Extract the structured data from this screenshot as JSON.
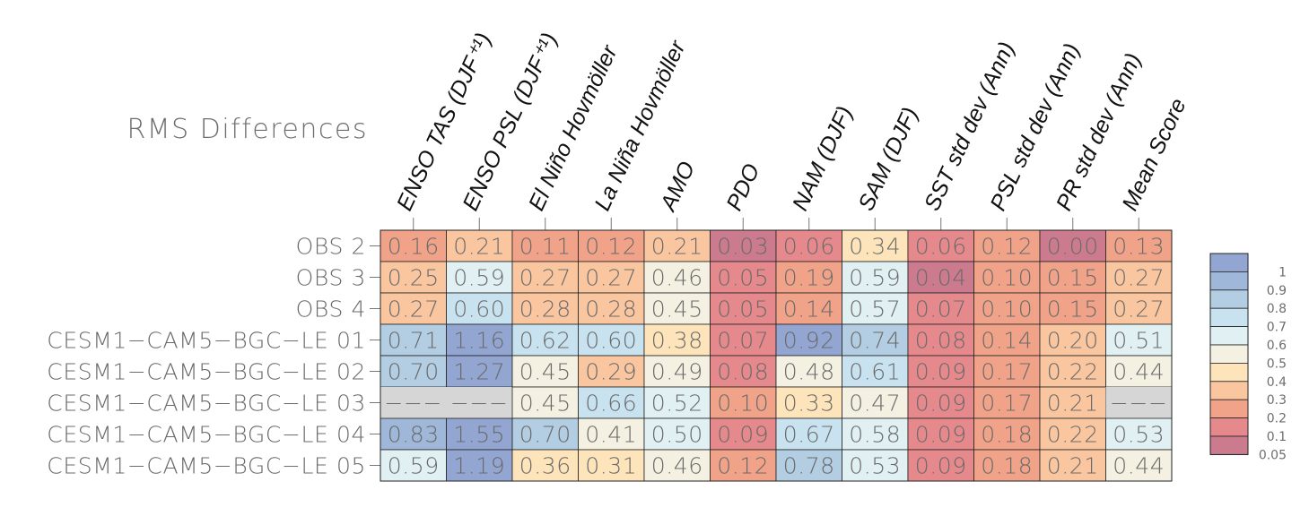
{
  "chart_data": {
    "type": "heatmap",
    "title": "RMS Differences",
    "columns": [
      "ENSO TAS (DJF⁺¹)",
      "ENSO PSL (DJF⁺¹)",
      "El Niño Hovmöller",
      "La Niña Hovmöller",
      "AMO",
      "PDO",
      "NAM (DJF)",
      "SAM (DJF)",
      "SST std dev (Ann)",
      "PSL std dev (Ann)",
      "PR std dev (Ann)",
      "Mean Score"
    ],
    "rows": [
      {
        "name": "OBS 2",
        "values": [
          0.16,
          0.21,
          0.11,
          0.12,
          0.21,
          0.03,
          0.06,
          0.34,
          0.06,
          0.12,
          0.0,
          0.13
        ]
      },
      {
        "name": "OBS 3",
        "values": [
          0.25,
          0.59,
          0.27,
          0.27,
          0.46,
          0.05,
          0.19,
          0.59,
          0.04,
          0.1,
          0.15,
          0.27
        ]
      },
      {
        "name": "OBS 4",
        "values": [
          0.27,
          0.6,
          0.28,
          0.28,
          0.45,
          0.05,
          0.14,
          0.57,
          0.07,
          0.1,
          0.15,
          0.27
        ]
      },
      {
        "name": "CESM1−CAM5−BGC−LE 01",
        "values": [
          0.71,
          1.16,
          0.62,
          0.6,
          0.38,
          0.07,
          0.92,
          0.74,
          0.08,
          0.14,
          0.2,
          0.51
        ]
      },
      {
        "name": "CESM1−CAM5−BGC−LE 02",
        "values": [
          0.7,
          1.27,
          0.45,
          0.29,
          0.49,
          0.08,
          0.48,
          0.61,
          0.09,
          0.17,
          0.22,
          0.44
        ]
      },
      {
        "name": "CESM1−CAM5−BGC−LE 03",
        "values": [
          null,
          null,
          0.45,
          0.66,
          0.52,
          0.1,
          0.33,
          0.47,
          0.09,
          0.17,
          0.21,
          null
        ]
      },
      {
        "name": "CESM1−CAM5−BGC−LE 04",
        "values": [
          0.83,
          1.55,
          0.7,
          0.41,
          0.5,
          0.09,
          0.67,
          0.58,
          0.09,
          0.18,
          0.22,
          0.53
        ]
      },
      {
        "name": "CESM1−CAM5−BGC−LE 05",
        "values": [
          0.59,
          1.19,
          0.36,
          0.31,
          0.46,
          0.12,
          0.78,
          0.53,
          0.09,
          0.18,
          0.21,
          0.44
        ]
      }
    ],
    "missing_text": "−−−",
    "colorbar": {
      "labels": [
        "1",
        "0.9",
        "0.8",
        "0.7",
        "0.6",
        "0.5",
        "0.4",
        "0.3",
        "0.2",
        "0.1",
        "0.05"
      ],
      "bounds": [
        0.05,
        0.1,
        0.2,
        0.3,
        0.4,
        0.5,
        0.6,
        0.7,
        0.8,
        0.9,
        1
      ],
      "colors": [
        "#cc7b8f",
        "#e5898c",
        "#f1a389",
        "#f9c6a0",
        "#fde4bb",
        "#f4f1e2",
        "#e1f0f3",
        "#c8e3ef",
        "#b3cde2",
        "#9fb7d8",
        "#93a5d1"
      ],
      "missing_color": "#d6d6d6"
    }
  }
}
